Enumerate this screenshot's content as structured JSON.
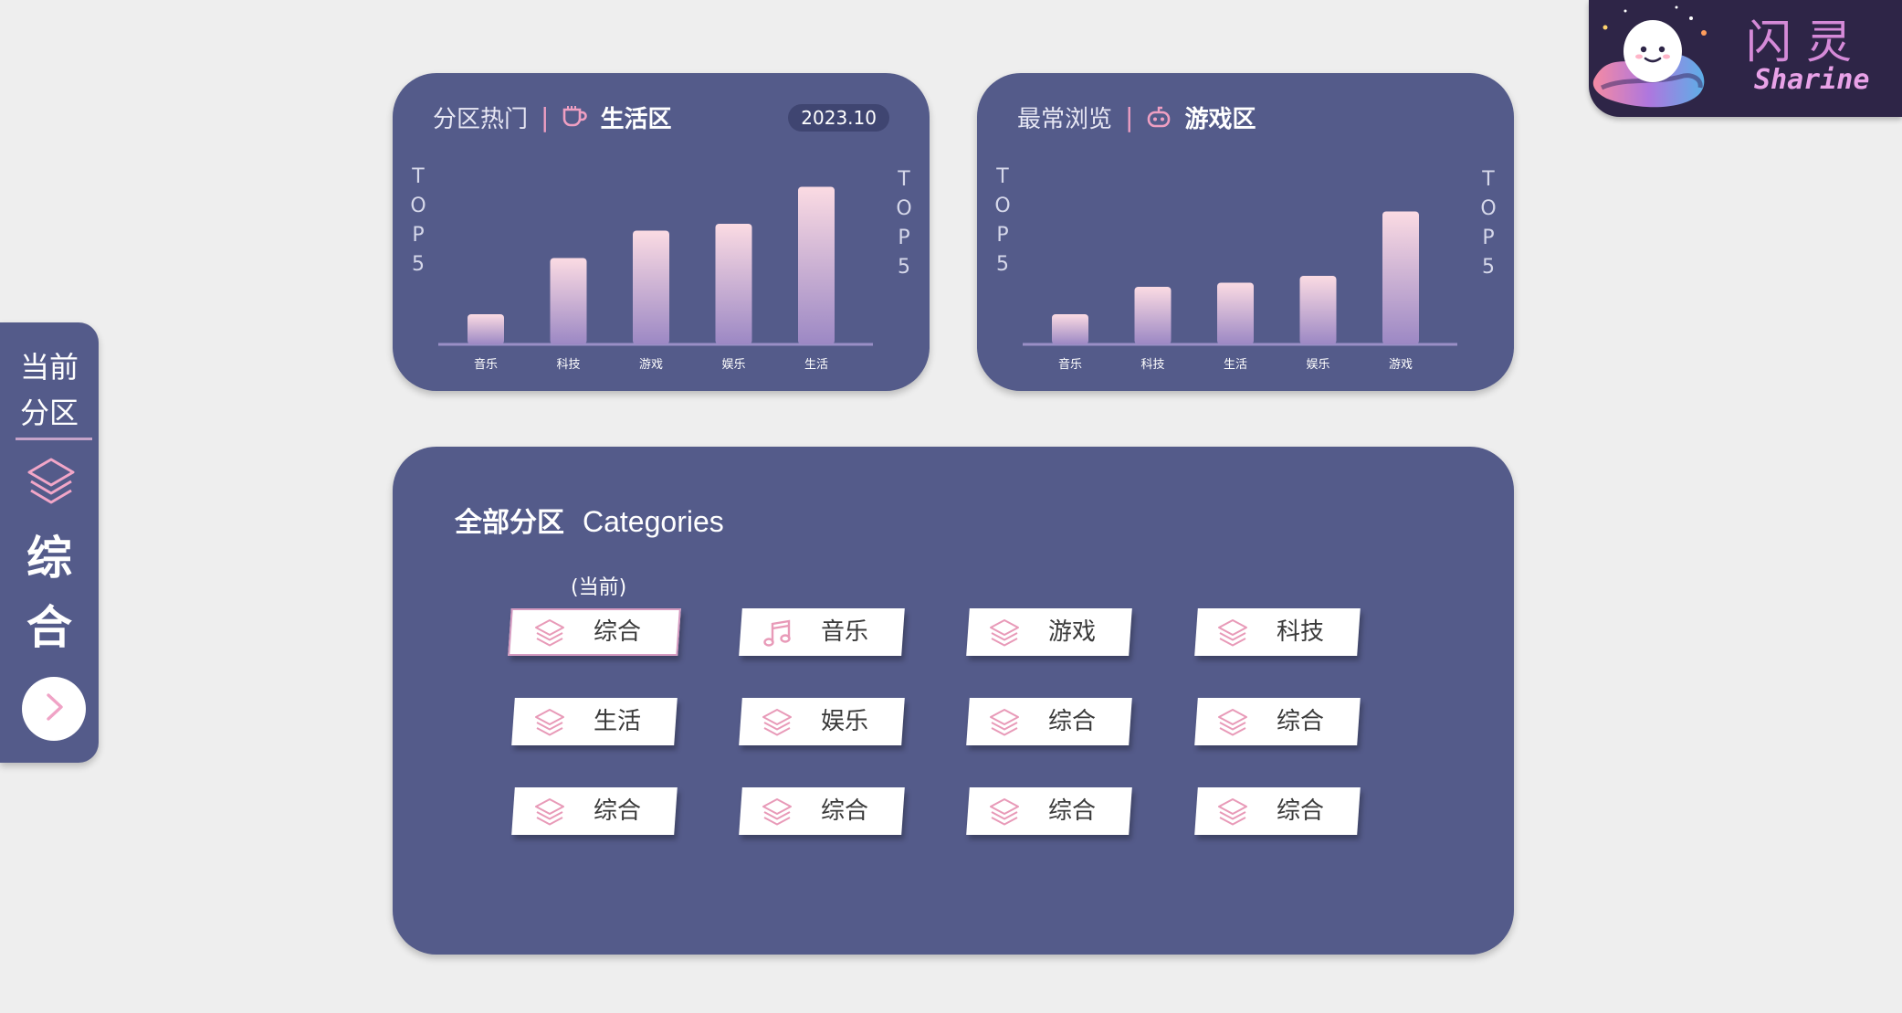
{
  "chart_data": [
    {
      "type": "bar",
      "title": "分区热门",
      "zone": "生活区",
      "badge": "2023.10",
      "side_label": "TOP5",
      "categories": [
        "音乐",
        "科技",
        "游戏",
        "娱乐",
        "生活"
      ],
      "values": [
        22,
        63,
        83,
        88,
        115
      ],
      "ylim": [
        0,
        120
      ]
    },
    {
      "type": "bar",
      "title": "最常浏览",
      "zone": "游戏区",
      "side_label": "TOP5",
      "categories": [
        "音乐",
        "科技",
        "生活",
        "娱乐",
        "游戏"
      ],
      "values": [
        22,
        42,
        45,
        50,
        97
      ],
      "ylim": [
        0,
        120
      ]
    }
  ],
  "colors": {
    "panel": "#545b8a",
    "background": "#eeeeee",
    "accent_pink": "#ef9fc2",
    "bar_top": "#fbdbe3",
    "bar_bottom": "#9c88c4"
  },
  "sidebar": {
    "head_line1": "当前",
    "head_line2": "分区",
    "current_zone_char1": "综",
    "current_zone_char2": "合",
    "icon": "layers-icon",
    "next_icon": "chevron-right-icon"
  },
  "categories_panel": {
    "title_zh": "全部分区",
    "title_en": "Categories",
    "current_label": "(当前)",
    "items": [
      {
        "label": "综合",
        "icon": "layers-icon"
      },
      {
        "label": "音乐",
        "icon": "music-note-icon"
      },
      {
        "label": "游戏",
        "icon": "layers-icon"
      },
      {
        "label": "科技",
        "icon": "layers-icon"
      },
      {
        "label": "生活",
        "icon": "layers-icon"
      },
      {
        "label": "娱乐",
        "icon": "layers-icon"
      },
      {
        "label": "综合",
        "icon": "layers-icon"
      },
      {
        "label": "综合",
        "icon": "layers-icon"
      },
      {
        "label": "综合",
        "icon": "layers-icon"
      },
      {
        "label": "综合",
        "icon": "layers-icon"
      },
      {
        "label": "综合",
        "icon": "layers-icon"
      },
      {
        "label": "综合",
        "icon": "layers-icon"
      }
    ]
  },
  "logo": {
    "name_zh": "闪灵",
    "name_en": "Sharine"
  }
}
